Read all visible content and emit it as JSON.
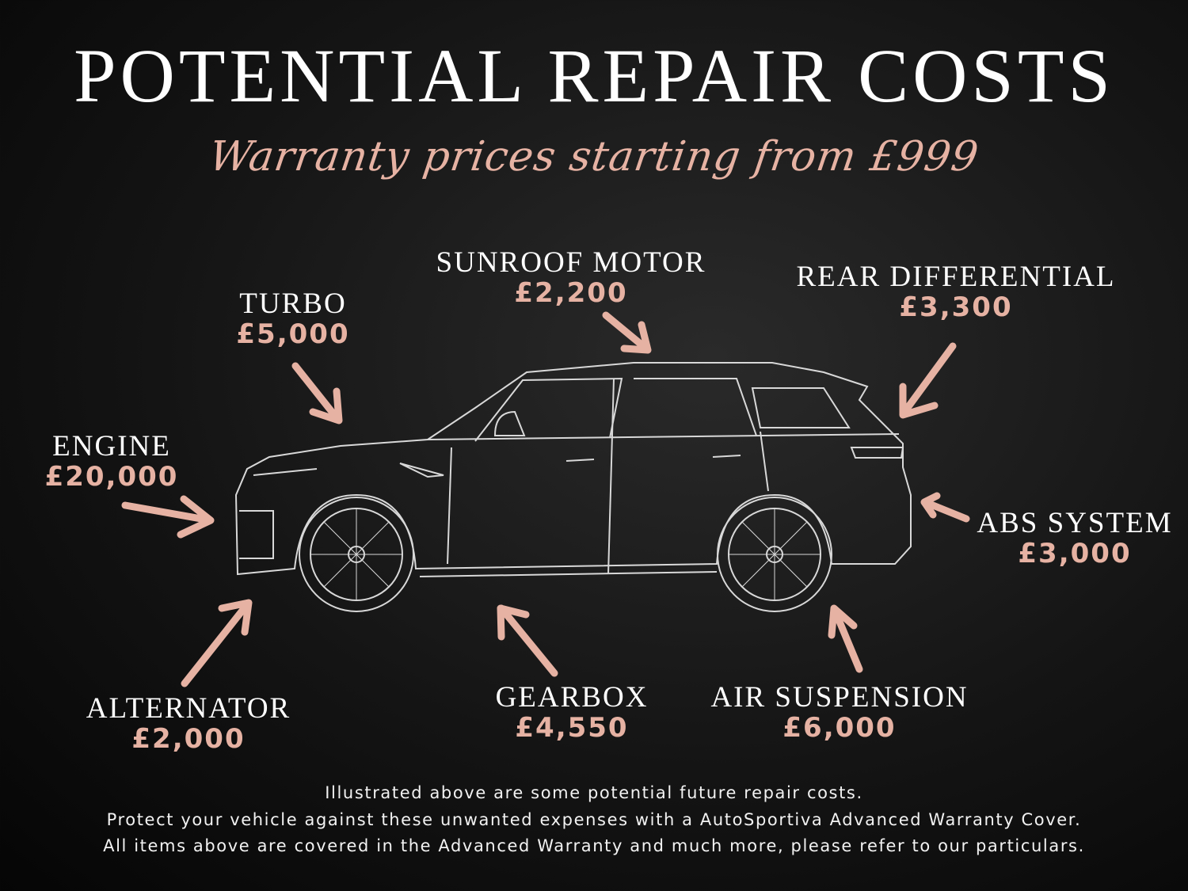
{
  "title": "POTENTIAL REPAIR COSTS",
  "subtitle": "Warranty prices starting from £999",
  "colors": {
    "accent": "#e6b2a3",
    "text": "#ffffff",
    "background": "#141414"
  },
  "parts": [
    {
      "name": "ENGINE",
      "price": "£20,000"
    },
    {
      "name": "TURBO",
      "price": "£5,000"
    },
    {
      "name": "SUNROOF MOTOR",
      "price": "£2,200"
    },
    {
      "name": "REAR DIFFERENTIAL",
      "price": "£3,300"
    },
    {
      "name": "ABS SYSTEM",
      "price": "£3,000"
    },
    {
      "name": "ALTERNATOR",
      "price": "£2,000"
    },
    {
      "name": "GEARBOX",
      "price": "£4,550"
    },
    {
      "name": "AIR SUSPENSION",
      "price": "£6,000"
    }
  ],
  "footer": [
    "Illustrated above are some potential future repair costs.",
    "Protect your vehicle against these unwanted expenses with a AutoSportiva Advanced Warranty Cover.",
    "All items above are covered in the Advanced Warranty and much more, please refer to our particulars."
  ]
}
